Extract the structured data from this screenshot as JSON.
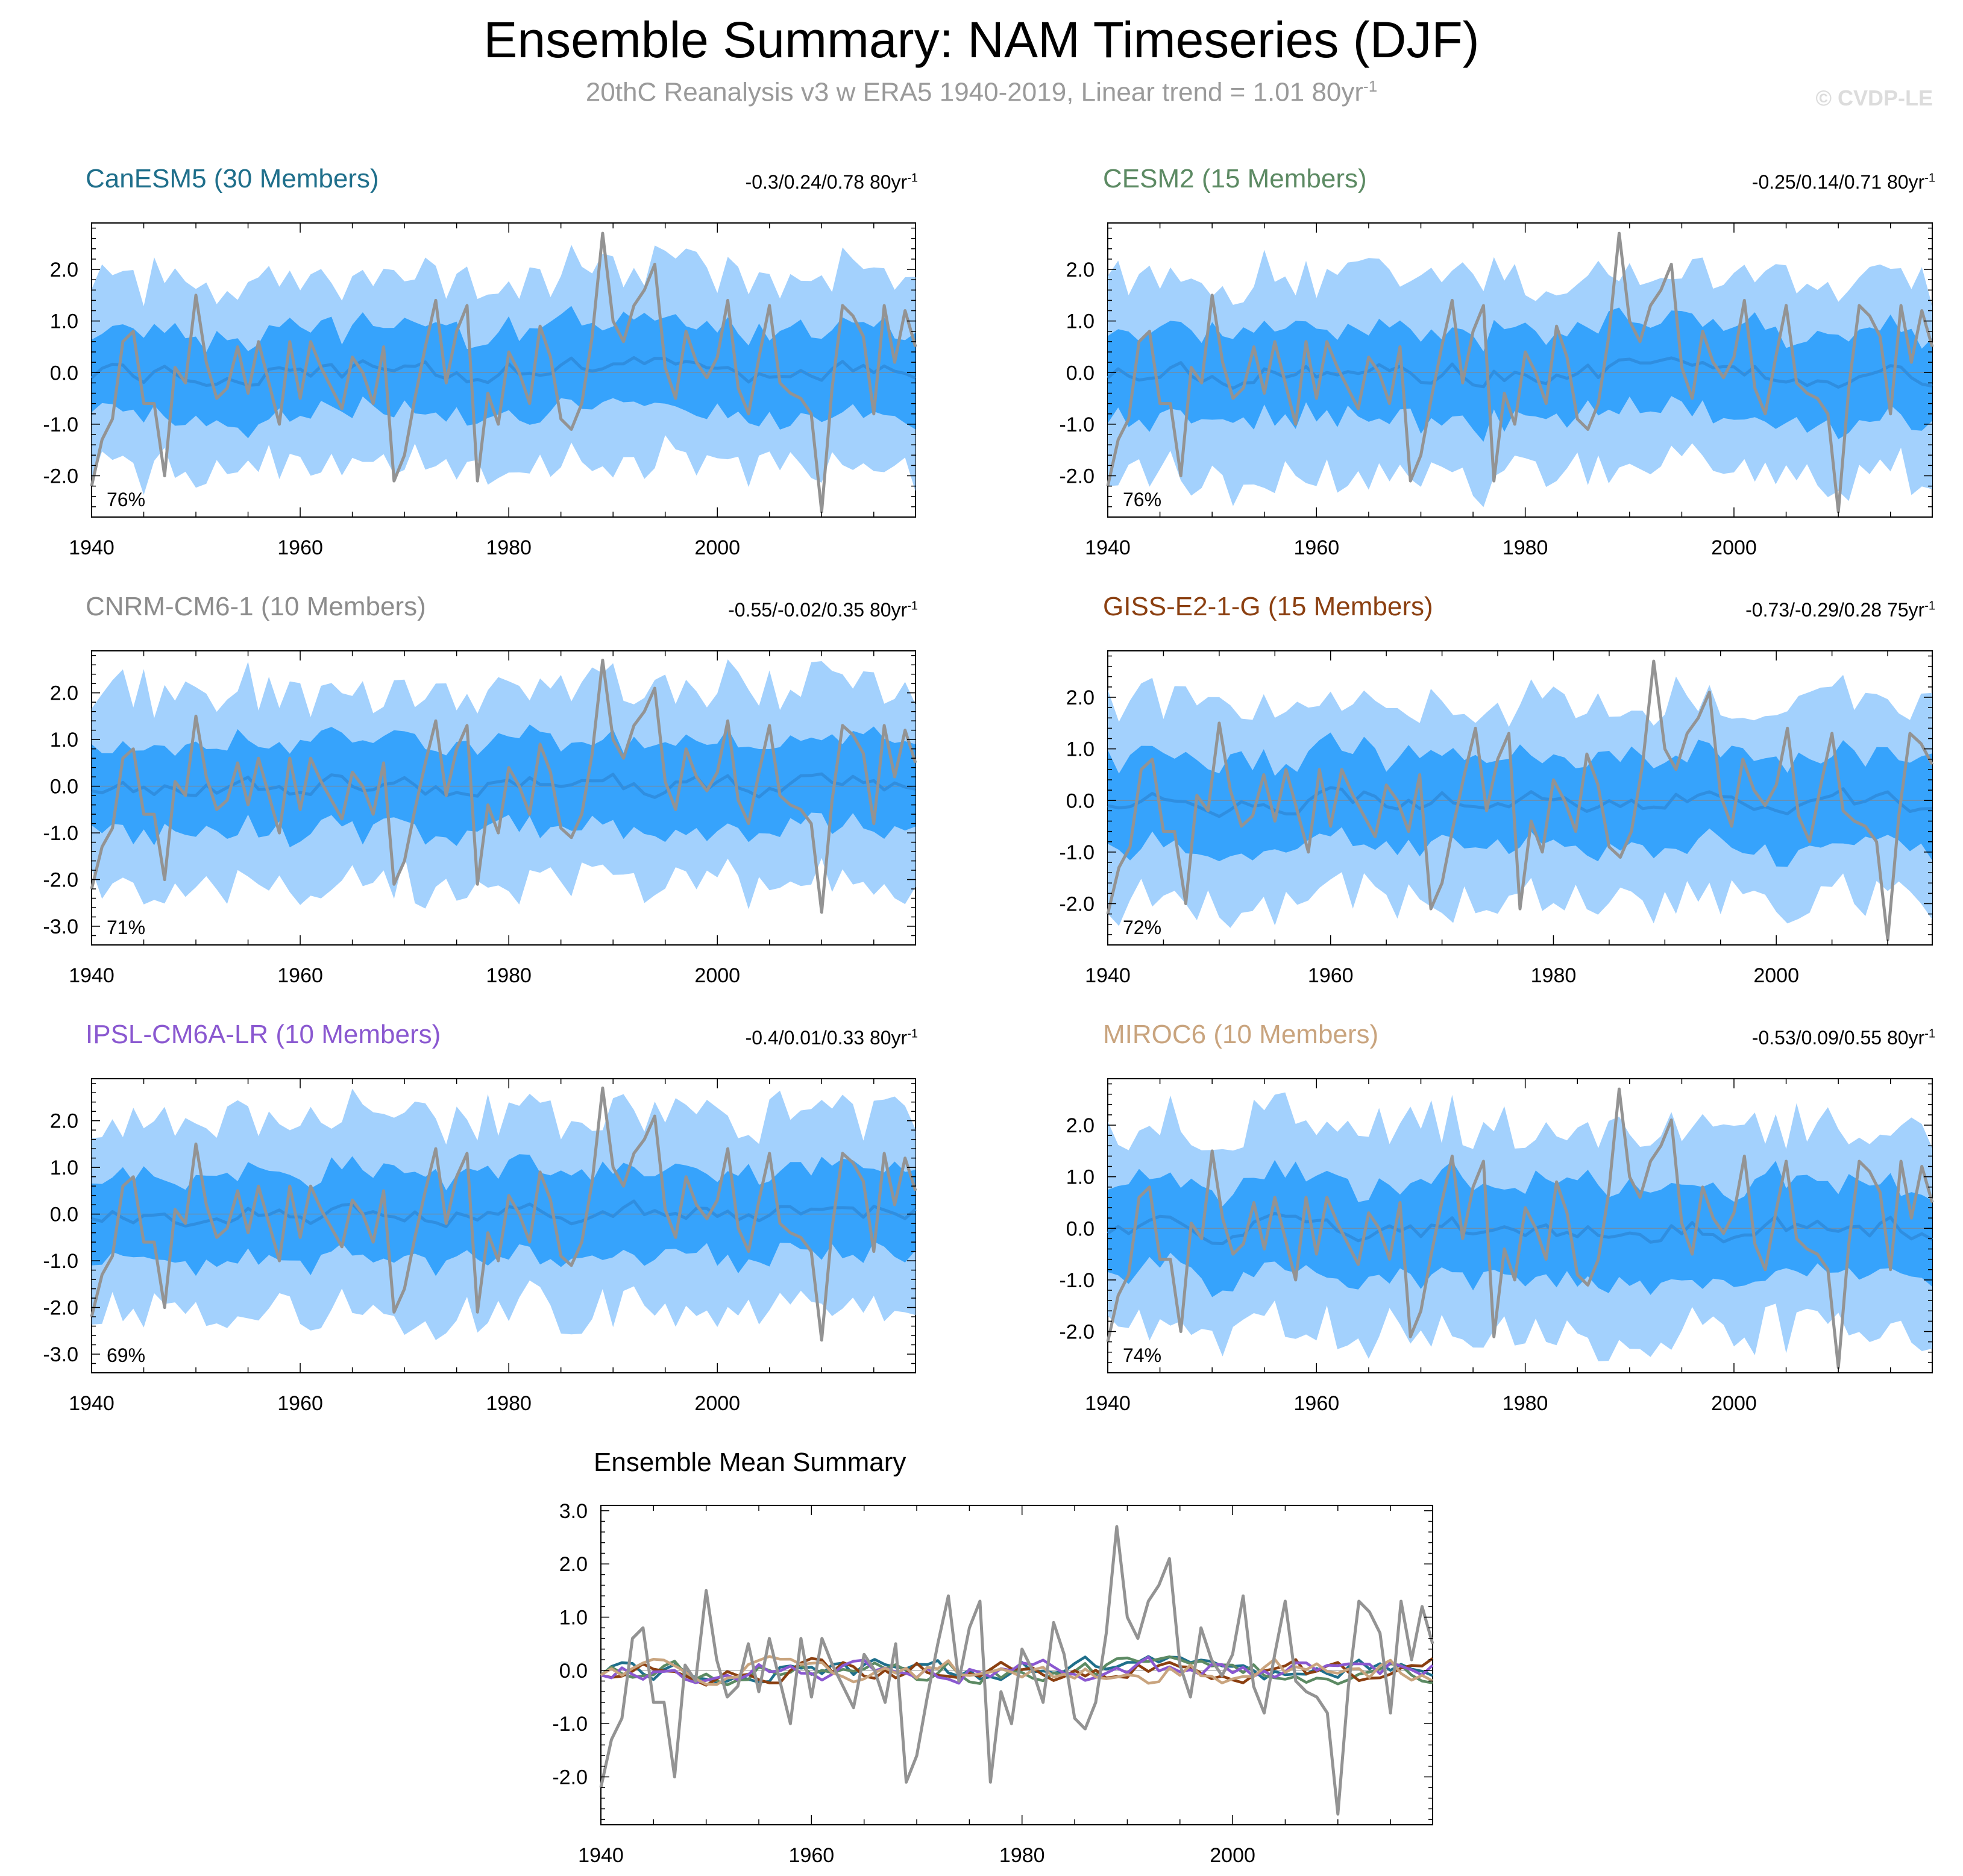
{
  "header": {
    "title": "Ensemble Summary: NAM Timeseries (DJF)",
    "subtitle": "20thC Reanalysis v3 w ERA5 1940-2019, Linear trend = 1.01 80yr",
    "subtitle_sup": "-1",
    "credit": "© CVDP-LE"
  },
  "colors": {
    "outer_band": "#a3d1fd",
    "inner_band": "#36a3fc",
    "ens_mean": "#2f8ee0",
    "observations": "#939393"
  },
  "chart_data": [
    {
      "type": "area",
      "name": "CanESM5",
      "title": "CanESM5 (30 Members)",
      "title_color": "#1f6f8b",
      "stats": "-0.3/0.24/0.78 80yr",
      "stats_sup": "-1",
      "percent_label": "76%",
      "x_start": 1940,
      "x_end": 2019,
      "ylim": [
        -2.8,
        2.9
      ],
      "yticks": [
        "2.0",
        "1.0",
        "0.0",
        "-1.0",
        "-2.0"
      ],
      "xticks": [
        "1940",
        "1960",
        "1980",
        "2000"
      ],
      "spread": 1.15,
      "mean_seed": 11
    },
    {
      "type": "area",
      "name": "CESM2",
      "title": "CESM2 (15 Members)",
      "title_color": "#5c8a63",
      "stats": "-0.25/0.14/0.71 80yr",
      "stats_sup": "-1",
      "percent_label": "76%",
      "x_start": 1940,
      "x_end": 2019,
      "ylim": [
        -2.8,
        2.9
      ],
      "yticks": [
        "2.0",
        "1.0",
        "0.0",
        "-1.0",
        "-2.0"
      ],
      "xticks": [
        "1940",
        "1960",
        "1980",
        "2000"
      ],
      "spread": 1.2,
      "mean_seed": 23
    },
    {
      "type": "area",
      "name": "CNRM-CM6-1",
      "title": "CNRM-CM6-1 (10 Members)",
      "title_color": "#8c8c8c",
      "stats": "-0.55/-0.02/0.35 80yr",
      "stats_sup": "-1",
      "percent_label": "71%",
      "x_start": 1940,
      "x_end": 2019,
      "ylim": [
        -3.4,
        2.9
      ],
      "yticks": [
        "2.0",
        "1.0",
        "0.0",
        "-1.0",
        "-2.0",
        "-3.0"
      ],
      "xticks": [
        "1940",
        "1960",
        "1980",
        "2000"
      ],
      "spread": 1.3,
      "mean_seed": 37
    },
    {
      "type": "area",
      "name": "GISS-E2-1-G",
      "title": "GISS-E2-1-G (15 Members)",
      "title_color": "#8b3f10",
      "stats": "-0.73/-0.29/0.28 75yr",
      "stats_sup": "-1",
      "percent_label": "72%",
      "x_start": 1940,
      "x_end": 2014,
      "ylim": [
        -2.8,
        2.9
      ],
      "yticks": [
        "2.0",
        "1.0",
        "0.0",
        "-1.0",
        "-2.0"
      ],
      "xticks": [
        "1940",
        "1960",
        "1980",
        "2000"
      ],
      "spread": 1.2,
      "mean_seed": 41
    },
    {
      "type": "area",
      "name": "IPSL-CM6A-LR",
      "title": "IPSL-CM6A-LR (10 Members)",
      "title_color": "#8a58d0",
      "stats": "-0.4/0.01/0.33 80yr",
      "stats_sup": "-1",
      "percent_label": "69%",
      "x_start": 1940,
      "x_end": 2019,
      "ylim": [
        -3.4,
        2.9
      ],
      "yticks": [
        "2.0",
        "1.0",
        "0.0",
        "-1.0",
        "-2.0",
        "-3.0"
      ],
      "xticks": [
        "1940",
        "1960",
        "1980",
        "2000"
      ],
      "spread": 1.3,
      "mean_seed": 53
    },
    {
      "type": "area",
      "name": "MIROC6",
      "title": "MIROC6 (10 Members)",
      "title_color": "#c9a47e",
      "stats": "-0.53/0.09/0.55 80yr",
      "stats_sup": "-1",
      "percent_label": "74%",
      "x_start": 1940,
      "x_end": 2019,
      "ylim": [
        -2.8,
        2.9
      ],
      "yticks": [
        "2.0",
        "1.0",
        "0.0",
        "-1.0",
        "-2.0"
      ],
      "xticks": [
        "1940",
        "1960",
        "1980",
        "2000"
      ],
      "spread": 1.25,
      "mean_seed": 67
    },
    {
      "type": "line",
      "name": "Ensemble Mean Summary",
      "title": "Ensemble Mean Summary",
      "x_start": 1940,
      "x_end": 2019,
      "ylim": [
        -2.9,
        3.1
      ],
      "yticks": [
        "3.0",
        "2.0",
        "1.0",
        "0.0",
        "-1.0",
        "-2.0"
      ],
      "xticks": [
        "1940",
        "1960",
        "1980",
        "2000"
      ],
      "series": [
        {
          "name": "CanESM5",
          "color": "#1f6f8b",
          "seed": 11
        },
        {
          "name": "CESM2",
          "color": "#5c8a63",
          "seed": 23
        },
        {
          "name": "GISS-E2-1-G",
          "color": "#8b3f10",
          "seed": 41
        },
        {
          "name": "IPSL-CM6A-LR",
          "color": "#8a58d0",
          "seed": 53
        },
        {
          "name": "MIROC6",
          "color": "#c9a47e",
          "seed": 67
        },
        {
          "name": "Observations",
          "color": "#939393",
          "observed": true
        }
      ]
    }
  ],
  "observations": {
    "name": "20thC Reanalysis v3 w ERA5",
    "x": [
      1940,
      1941,
      1942,
      1943,
      1944,
      1945,
      1946,
      1947,
      1948,
      1949,
      1950,
      1951,
      1952,
      1953,
      1954,
      1955,
      1956,
      1957,
      1958,
      1959,
      1960,
      1961,
      1962,
      1963,
      1964,
      1965,
      1966,
      1967,
      1968,
      1969,
      1970,
      1971,
      1972,
      1973,
      1974,
      1975,
      1976,
      1977,
      1978,
      1979,
      1980,
      1981,
      1982,
      1983,
      1984,
      1985,
      1986,
      1987,
      1988,
      1989,
      1990,
      1991,
      1992,
      1993,
      1994,
      1995,
      1996,
      1997,
      1998,
      1999,
      2000,
      2001,
      2002,
      2003,
      2004,
      2005,
      2006,
      2007,
      2008,
      2009,
      2010,
      2011,
      2012,
      2013,
      2014,
      2015,
      2016,
      2017,
      2018,
      2019
    ],
    "values": [
      -2.2,
      -1.3,
      -0.9,
      0.6,
      0.8,
      -0.6,
      -0.6,
      -2.0,
      0.1,
      -0.2,
      1.5,
      0.2,
      -0.5,
      -0.3,
      0.5,
      -0.4,
      0.6,
      -0.2,
      -1.0,
      0.6,
      -0.5,
      0.6,
      0.1,
      -0.3,
      -0.7,
      0.3,
      0.0,
      -0.6,
      0.5,
      -2.1,
      -1.6,
      -0.5,
      0.5,
      1.4,
      -0.2,
      0.8,
      1.3,
      -2.1,
      -0.4,
      -1.0,
      0.4,
      0.0,
      -0.6,
      0.9,
      0.3,
      -0.9,
      -1.1,
      -0.6,
      0.7,
      2.7,
      1.0,
      0.6,
      1.3,
      1.6,
      2.1,
      0.1,
      -0.5,
      0.8,
      0.2,
      -0.1,
      0.3,
      1.4,
      -0.3,
      -0.8,
      0.3,
      1.3,
      -0.2,
      -0.4,
      -0.5,
      -0.8,
      -2.7,
      -0.3,
      1.3,
      1.1,
      0.7,
      -0.8,
      1.3,
      0.2,
      1.2,
      0.5
    ]
  }
}
